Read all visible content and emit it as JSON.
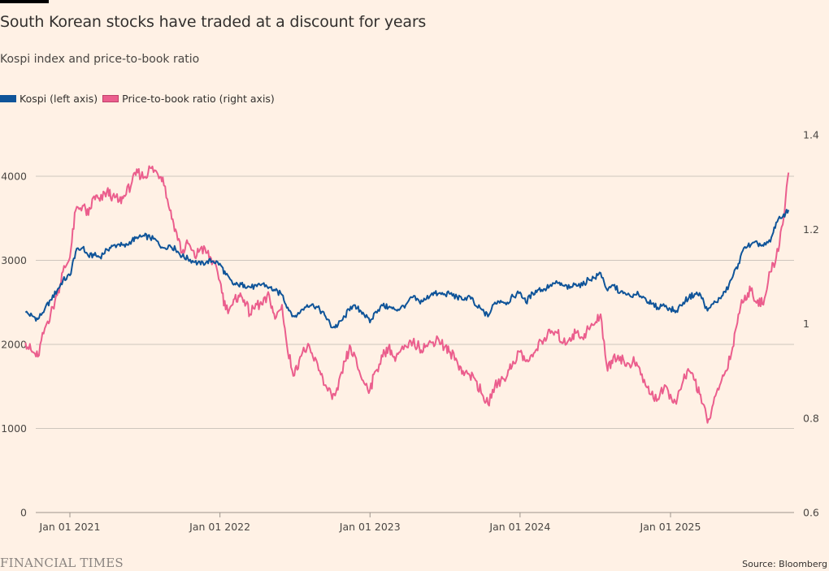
{
  "header": {
    "title": "South Korean stocks have traded at a discount for years",
    "subtitle": "Kospi index and price-to-book ratio"
  },
  "legend": [
    {
      "label": "Kospi (left axis)",
      "color": "#0f5499"
    },
    {
      "label": "Price-to-book ratio (right axis)",
      "color": "#eb5e8d"
    }
  ],
  "footer": {
    "brand": "FINANCIAL TIMES",
    "source": "Source: Bloomberg"
  },
  "chart_data": {
    "type": "line",
    "title": "South Korean stocks have traded at a discount for years",
    "subtitle": "Kospi index and price-to-book ratio",
    "xlabel": "",
    "x_range": [
      "2020-09-15",
      "2025-10-15"
    ],
    "x_ticks": [
      "Jan 01 2021",
      "Jan 01 2022",
      "Jan 01 2023",
      "Jan 01 2024",
      "Jan 01 2025"
    ],
    "y_left": {
      "label": "Kospi",
      "ticks": [
        "0",
        "1000",
        "2000",
        "3000",
        "4000"
      ],
      "range": [
        0,
        4000
      ]
    },
    "y_right": {
      "label": "Price-to-book ratio",
      "ticks": [
        "0.6",
        "0.8",
        "1",
        "1.2",
        "1.4"
      ],
      "range": [
        0.6,
        1.4
      ]
    },
    "grid": true,
    "legend_position": "top-left",
    "x": [
      "2020-09-15",
      "2020-10-01",
      "2020-10-15",
      "2020-11-01",
      "2020-11-15",
      "2020-12-01",
      "2020-12-15",
      "2021-01-01",
      "2021-01-15",
      "2021-02-01",
      "2021-02-15",
      "2021-03-01",
      "2021-03-15",
      "2021-04-01",
      "2021-04-15",
      "2021-05-01",
      "2021-05-15",
      "2021-06-01",
      "2021-06-15",
      "2021-07-01",
      "2021-07-15",
      "2021-08-01",
      "2021-08-15",
      "2021-09-01",
      "2021-09-15",
      "2021-10-01",
      "2021-10-15",
      "2021-11-01",
      "2021-11-15",
      "2021-12-01",
      "2021-12-15",
      "2022-01-01",
      "2022-01-15",
      "2022-02-01",
      "2022-02-15",
      "2022-03-01",
      "2022-03-15",
      "2022-04-01",
      "2022-04-15",
      "2022-05-01",
      "2022-05-15",
      "2022-06-01",
      "2022-06-15",
      "2022-07-01",
      "2022-07-15",
      "2022-08-01",
      "2022-08-15",
      "2022-09-01",
      "2022-09-15",
      "2022-10-01",
      "2022-10-15",
      "2022-11-01",
      "2022-11-15",
      "2022-12-01",
      "2022-12-15",
      "2023-01-01",
      "2023-01-15",
      "2023-02-01",
      "2023-02-15",
      "2023-03-01",
      "2023-03-15",
      "2023-04-01",
      "2023-04-15",
      "2023-05-01",
      "2023-05-15",
      "2023-06-01",
      "2023-06-15",
      "2023-07-01",
      "2023-07-15",
      "2023-08-01",
      "2023-08-15",
      "2023-09-01",
      "2023-09-15",
      "2023-10-01",
      "2023-10-15",
      "2023-11-01",
      "2023-11-15",
      "2023-12-01",
      "2023-12-15",
      "2024-01-01",
      "2024-01-15",
      "2024-02-01",
      "2024-02-15",
      "2024-03-01",
      "2024-03-15",
      "2024-04-01",
      "2024-04-15",
      "2024-05-01",
      "2024-05-15",
      "2024-06-01",
      "2024-06-15",
      "2024-07-01",
      "2024-07-15",
      "2024-08-01",
      "2024-08-15",
      "2024-09-01",
      "2024-09-15",
      "2024-10-01",
      "2024-10-15",
      "2024-11-01",
      "2024-11-15",
      "2024-12-01",
      "2024-12-15",
      "2025-01-01",
      "2025-01-15",
      "2025-02-01",
      "2025-02-15",
      "2025-03-01",
      "2025-03-15",
      "2025-04-01",
      "2025-04-15",
      "2025-05-01",
      "2025-05-15",
      "2025-06-01",
      "2025-06-15",
      "2025-07-01",
      "2025-07-15",
      "2025-08-01",
      "2025-08-15",
      "2025-09-01",
      "2025-09-15",
      "2025-10-01",
      "2025-10-15"
    ],
    "series": [
      {
        "name": "Kospi (left axis)",
        "axis": "left",
        "color": "#0f5499",
        "values": [
          2380,
          2340,
          2300,
          2420,
          2530,
          2640,
          2760,
          2820,
          3100,
          3150,
          3050,
          3060,
          3040,
          3130,
          3170,
          3190,
          3160,
          3240,
          3260,
          3290,
          3270,
          3230,
          3150,
          3180,
          3130,
          3050,
          3020,
          2980,
          2950,
          2990,
          2990,
          2960,
          2830,
          2720,
          2700,
          2710,
          2680,
          2690,
          2720,
          2680,
          2640,
          2590,
          2440,
          2330,
          2380,
          2470,
          2480,
          2410,
          2330,
          2200,
          2230,
          2330,
          2450,
          2430,
          2380,
          2260,
          2390,
          2460,
          2440,
          2420,
          2420,
          2490,
          2560,
          2510,
          2530,
          2610,
          2600,
          2600,
          2600,
          2560,
          2530,
          2570,
          2460,
          2410,
          2330,
          2500,
          2520,
          2500,
          2570,
          2620,
          2500,
          2610,
          2650,
          2660,
          2710,
          2730,
          2700,
          2670,
          2720,
          2700,
          2780,
          2790,
          2850,
          2640,
          2700,
          2620,
          2590,
          2560,
          2600,
          2550,
          2480,
          2440,
          2480,
          2420,
          2400,
          2500,
          2560,
          2600,
          2590,
          2400,
          2480,
          2550,
          2620,
          2800,
          2960,
          3160,
          3180,
          3200,
          3170,
          3220,
          3450,
          3520,
          3600
        ],
        "ytick_values": [
          0,
          1000,
          2000,
          3000,
          4000
        ]
      },
      {
        "name": "Price-to-book ratio (right axis)",
        "axis": "right",
        "color": "#eb5e8d",
        "values": [
          0.96,
          0.94,
          0.93,
          0.99,
          1.02,
          1.06,
          1.11,
          1.14,
          1.24,
          1.25,
          1.23,
          1.27,
          1.26,
          1.28,
          1.27,
          1.26,
          1.27,
          1.3,
          1.32,
          1.31,
          1.33,
          1.32,
          1.31,
          1.24,
          1.2,
          1.15,
          1.17,
          1.14,
          1.16,
          1.15,
          1.13,
          1.09,
          1.03,
          1.04,
          1.06,
          1.05,
          1.02,
          1.04,
          1.04,
          1.06,
          1.01,
          1.04,
          0.94,
          0.89,
          0.93,
          0.95,
          0.93,
          0.9,
          0.87,
          0.84,
          0.86,
          0.92,
          0.95,
          0.91,
          0.88,
          0.86,
          0.9,
          0.93,
          0.95,
          0.93,
          0.94,
          0.95,
          0.96,
          0.95,
          0.95,
          0.96,
          0.97,
          0.95,
          0.94,
          0.92,
          0.9,
          0.89,
          0.88,
          0.85,
          0.83,
          0.87,
          0.88,
          0.89,
          0.92,
          0.94,
          0.92,
          0.93,
          0.96,
          0.97,
          0.98,
          0.98,
          0.96,
          0.97,
          0.98,
          0.97,
          0.99,
          1.0,
          1.02,
          0.9,
          0.93,
          0.93,
          0.91,
          0.92,
          0.91,
          0.87,
          0.85,
          0.84,
          0.86,
          0.85,
          0.83,
          0.88,
          0.9,
          0.88,
          0.85,
          0.79,
          0.83,
          0.87,
          0.9,
          0.95,
          1.02,
          1.06,
          1.07,
          1.05,
          1.04,
          1.11,
          1.14,
          1.21,
          1.32
        ]
      }
    ]
  }
}
